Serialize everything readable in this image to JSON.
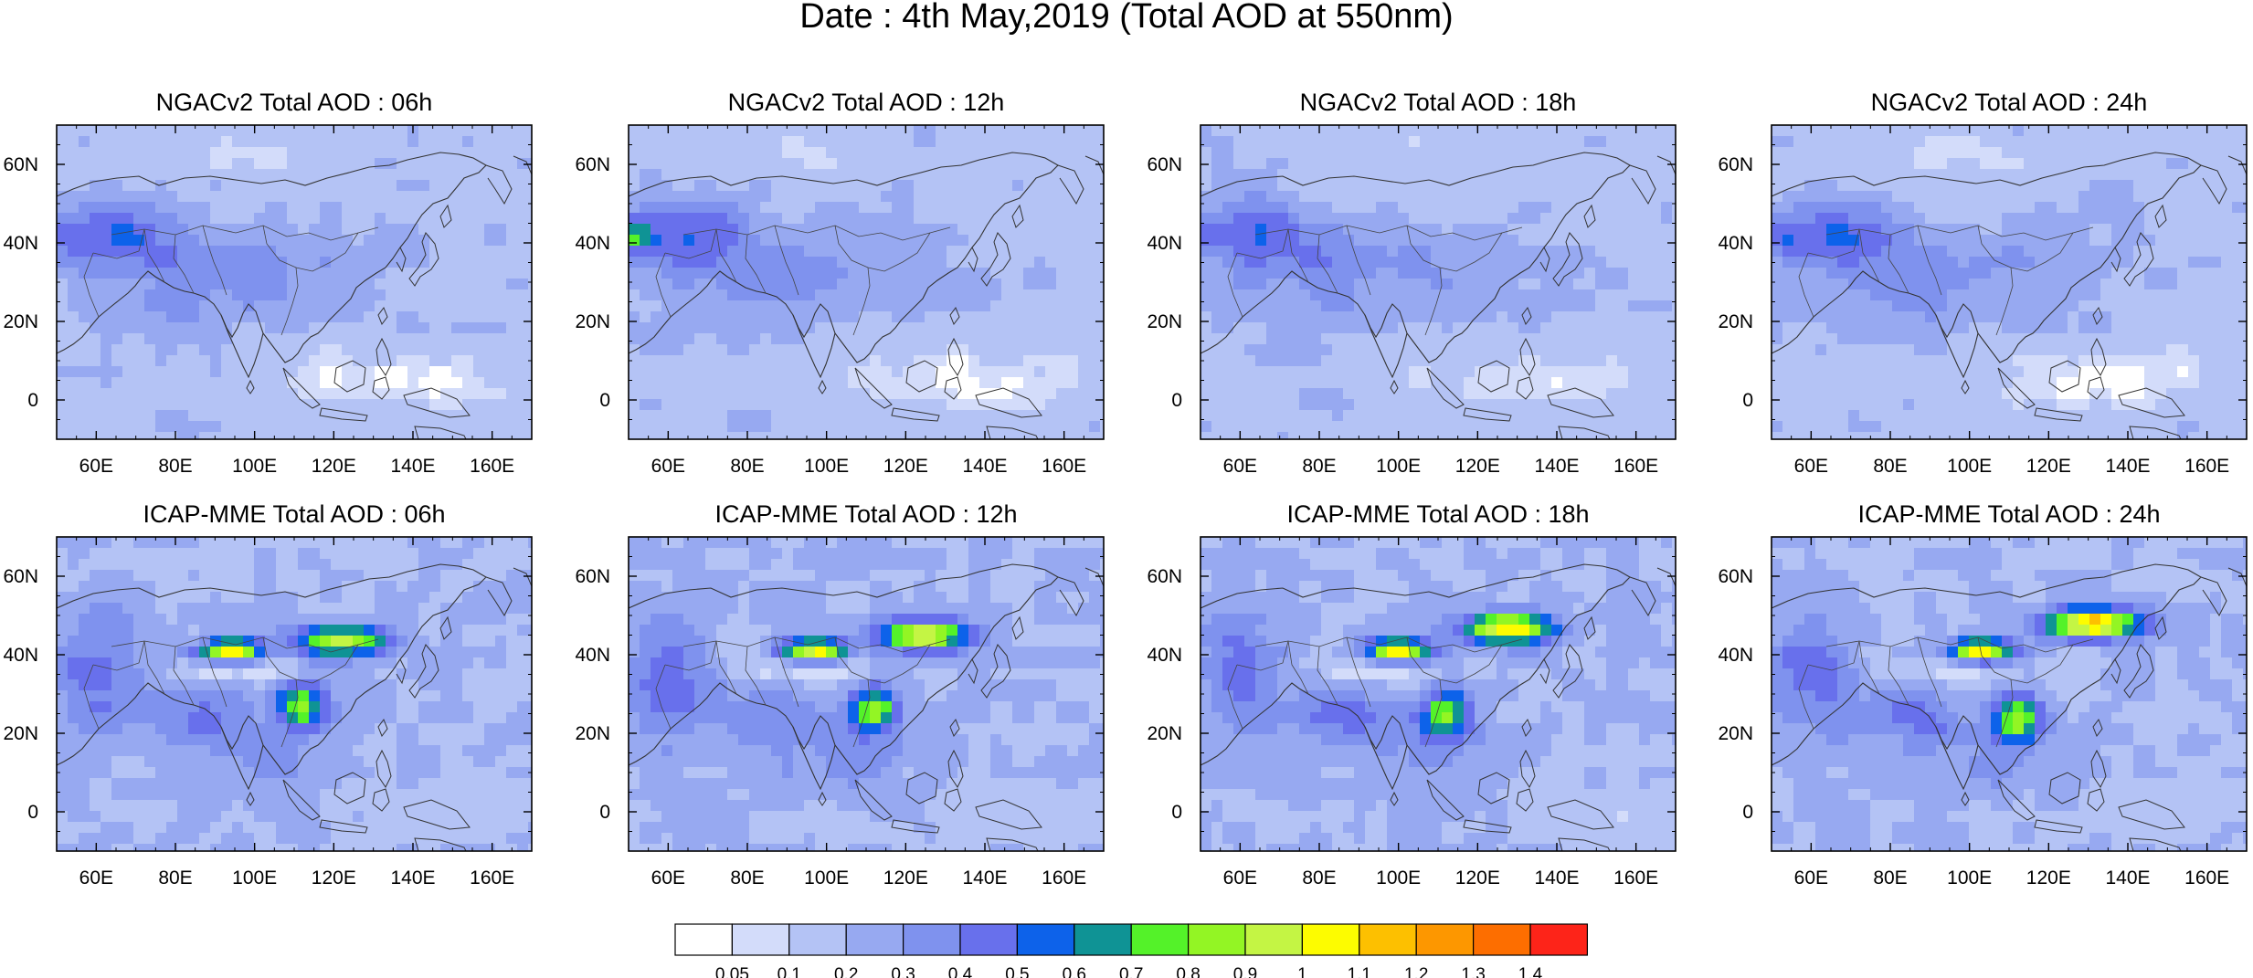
{
  "page": {
    "title": "Date : 4th May,2019 (Total AOD at 550nm)"
  },
  "axes": {
    "x_ticks": [
      "60E",
      "80E",
      "100E",
      "120E",
      "140E",
      "160E"
    ],
    "y_ticks": [
      "60N",
      "40N",
      "20N",
      "0"
    ],
    "x_range": [
      50,
      170
    ],
    "y_range": [
      -10,
      70
    ]
  },
  "panels": [
    {
      "id": "ngac-06h",
      "title": "NGACv2 Total AOD : 06h",
      "model": "NGACv2",
      "hour": "06h"
    },
    {
      "id": "ngac-12h",
      "title": "NGACv2 Total AOD : 12h",
      "model": "NGACv2",
      "hour": "12h"
    },
    {
      "id": "ngac-18h",
      "title": "NGACv2 Total AOD : 18h",
      "model": "NGACv2",
      "hour": "18h"
    },
    {
      "id": "ngac-24h",
      "title": "NGACv2 Total AOD : 24h",
      "model": "NGACv2",
      "hour": "24h"
    },
    {
      "id": "icap-06h",
      "title": "ICAP-MME Total AOD : 06h",
      "model": "ICAP-MME",
      "hour": "06h"
    },
    {
      "id": "icap-12h",
      "title": "ICAP-MME Total AOD : 12h",
      "model": "ICAP-MME",
      "hour": "12h"
    },
    {
      "id": "icap-18h",
      "title": "ICAP-MME Total AOD : 18h",
      "model": "ICAP-MME",
      "hour": "18h"
    },
    {
      "id": "icap-24h",
      "title": "ICAP-MME Total AOD : 24h",
      "model": "ICAP-MME",
      "hour": "24h"
    }
  ],
  "colorbar": {
    "labels": [
      "0.05",
      "0.1",
      "0.2",
      "0.3",
      "0.4",
      "0.5",
      "0.6",
      "0.7",
      "0.8",
      "0.9",
      "1",
      "1.1",
      "1.2",
      "1.3",
      "1.4"
    ],
    "colors": [
      "#ffffff",
      "#d3dcfa",
      "#b4c3f5",
      "#97a9f1",
      "#7f92ee",
      "#6870ec",
      "#0d62ea",
      "#0f9395",
      "#54f229",
      "#93f524",
      "#c4f544",
      "#fdfc00",
      "#fdc000",
      "#fd9700",
      "#fd6e00",
      "#fd2419"
    ]
  }
}
